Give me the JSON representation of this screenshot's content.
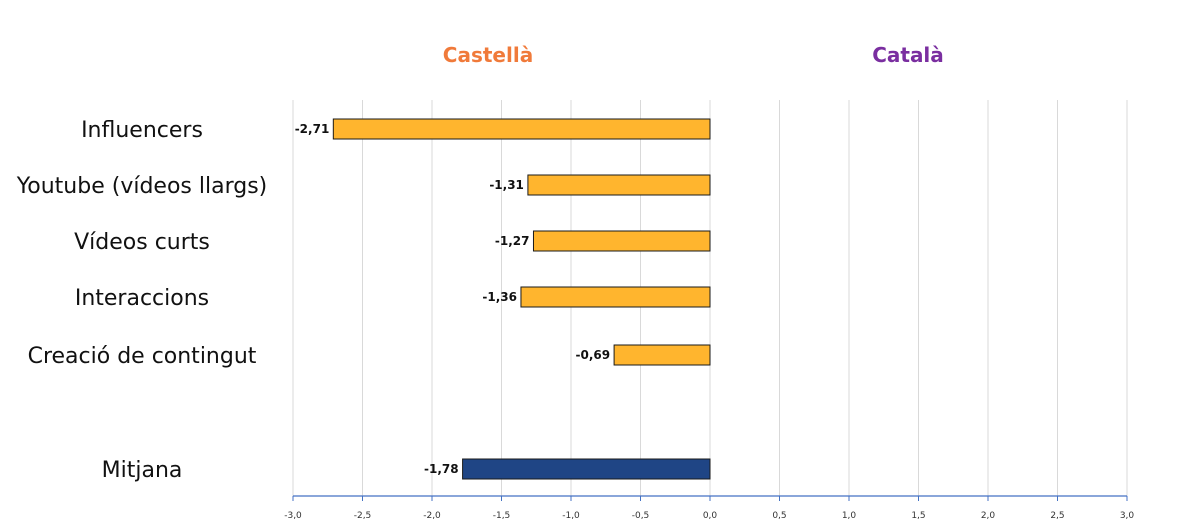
{
  "chart_data": {
    "type": "bar",
    "orientation": "horizontal",
    "headers": {
      "left": "Castellà",
      "right": "Català"
    },
    "categories": [
      "Influencers",
      "Youtube (vídeos llargs)",
      "Vídeos curts",
      "Interaccions",
      "Creació de contingut",
      "Mitjana"
    ],
    "values": [
      -2.71,
      -1.31,
      -1.27,
      -1.36,
      -0.69,
      -1.78
    ],
    "value_labels": [
      "-2,71",
      "-1,31",
      "-1,27",
      "-1,36",
      "-0,69",
      "-1,78"
    ],
    "xlim": [
      -3.0,
      3.0
    ],
    "x_ticks": [
      -3.0,
      -2.5,
      -2.0,
      -1.5,
      -1.0,
      -0.5,
      0.0,
      0.5,
      1.0,
      1.5,
      2.0,
      2.5,
      3.0
    ],
    "x_tick_labels": [
      "-3,0",
      "-2,5",
      "-2,0",
      "-1,5",
      "-1,0",
      "-0,5",
      "0,0",
      "0,5",
      "1,0",
      "1,5",
      "2,0",
      "2,5",
      "3,0"
    ],
    "grid": true,
    "colors": {
      "bar": "#ffb52e",
      "average_bar": "#1f4585",
      "axis": "#4472c4",
      "grid": "#d9d9d9",
      "left_header": "#f07a3a",
      "right_header": "#7a2ea0"
    }
  }
}
